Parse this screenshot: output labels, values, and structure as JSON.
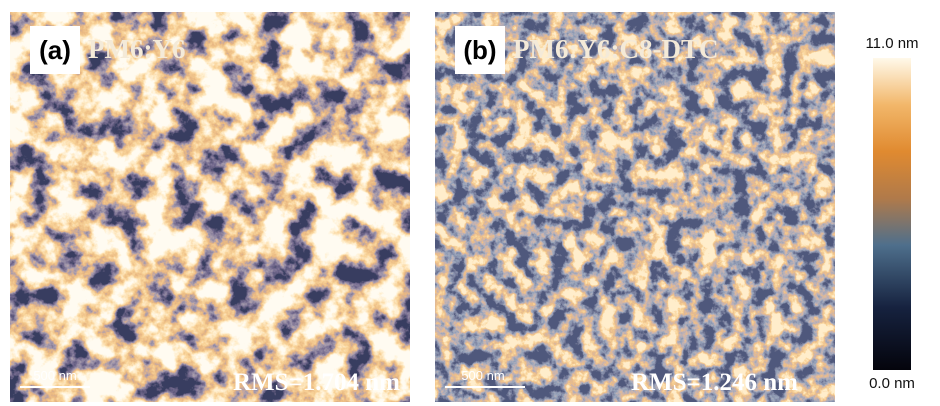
{
  "panels": [
    {
      "label": "(a)",
      "title": "PM6:Y6",
      "scale_bar": "500 nm",
      "rms": "RMS=1.704 nm"
    },
    {
      "label": "(b)",
      "title": "PM6:Y6:C8-DTC",
      "scale_bar": "500 nm",
      "rms": "RMS=1.246 nm"
    }
  ],
  "colorbar": {
    "max_label": "11.0 nm",
    "min_label": "0.0 nm"
  }
}
